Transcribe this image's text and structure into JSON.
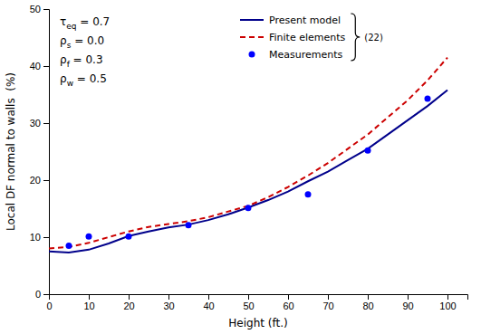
{
  "chart_data": {
    "type": "line",
    "xlabel": "Height (ft.)",
    "ylabel": "Local DF normal to walls  (%)",
    "xlim": [
      0,
      105
    ],
    "ylim": [
      0,
      50
    ],
    "xticks": [
      0,
      10,
      20,
      30,
      40,
      50,
      60,
      70,
      80,
      90,
      100
    ],
    "yticks": [
      0,
      10,
      20,
      30,
      40,
      50
    ],
    "grid": false,
    "legend": "upper center",
    "series": [
      {
        "name": "Present model",
        "type": "line",
        "line_style": "solid",
        "color": "#00008B",
        "x": [
          0,
          5,
          10,
          15,
          20,
          25,
          30,
          35,
          40,
          45,
          50,
          55,
          60,
          65,
          70,
          75,
          80,
          85,
          90,
          95,
          100
        ],
        "values": [
          7.5,
          7.3,
          7.8,
          8.9,
          10.2,
          11.0,
          11.7,
          12.2,
          13.0,
          14.0,
          15.2,
          16.5,
          18.0,
          19.8,
          21.5,
          23.5,
          25.5,
          28.0,
          30.5,
          33.0,
          35.8
        ]
      },
      {
        "name": "Finite elements",
        "type": "line",
        "line_style": "dashed",
        "color": "#CC0000",
        "x": [
          0,
          5,
          10,
          15,
          20,
          25,
          30,
          35,
          40,
          45,
          50,
          55,
          60,
          65,
          70,
          75,
          80,
          85,
          90,
          95,
          100
        ],
        "values": [
          8.0,
          8.3,
          9.0,
          10.0,
          11.0,
          11.8,
          12.3,
          12.8,
          13.5,
          14.5,
          15.5,
          17.0,
          18.8,
          20.8,
          23.0,
          25.5,
          28.0,
          31.0,
          34.0,
          37.5,
          41.5
        ]
      },
      {
        "name": "Measurements",
        "type": "scatter",
        "marker": "circle",
        "color": "#0000FF",
        "x": [
          5,
          10,
          20,
          35,
          50,
          65,
          80,
          95
        ],
        "values": [
          8.5,
          10.1,
          10.1,
          12.1,
          15.1,
          17.5,
          25.2,
          34.3
        ]
      }
    ],
    "annotations": [
      "τeq = 0.7",
      "ρs = 0.0",
      "ρf = 0.3",
      "ρw = 0.5"
    ],
    "legend_note": "(22)"
  }
}
